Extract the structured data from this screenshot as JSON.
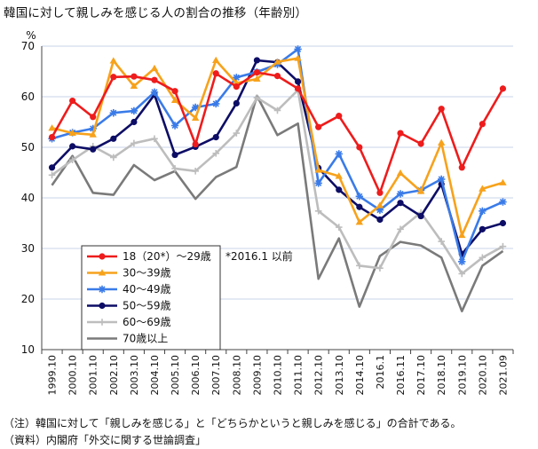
{
  "title": "韓国に対して親しみを感じる人の割合の推移（年齢別）",
  "notes": [
    "（注）韓国に対して「親しみを感じる」と「どちらかというと親しみを感じる」の合計である。",
    "（資料）内閣府「外交に関する世論調査」"
  ],
  "chart_data": {
    "type": "line",
    "unit_label": "%",
    "ylim": [
      10,
      70
    ],
    "yticks": [
      10,
      20,
      30,
      40,
      50,
      60,
      70
    ],
    "grid": "horizontal",
    "legend_position": "bottom-left",
    "annotation": "*2016.1 以前",
    "x_labels": [
      "1999.10",
      "2000.10",
      "2001.10",
      "2002.10",
      "2003.10",
      "2004.10",
      "2005.10",
      "2006.10",
      "2007.10",
      "2008.10",
      "2009.10",
      "2010.10",
      "2011.10",
      "2012.10",
      "2013.10",
      "2014.10",
      "2016.1",
      "2016.11",
      "2017.10",
      "2018.10",
      "2019.10",
      "2020.10",
      "2021.09"
    ],
    "x": [
      "1999.10",
      "2000.10",
      "2001.10",
      "2002.10",
      "2003.10",
      "2004.10",
      "2005.10",
      "2006.10",
      "2007.10",
      "2008.10",
      "2009.10",
      "2010.10",
      "2011.10",
      "2012.10",
      "2013.10",
      "2014.10",
      "2016.1",
      "2016.11",
      "2017.10",
      "2018.10",
      "2019.10",
      "2020.10",
      "2021.09"
    ],
    "series": [
      {
        "name": "18（20*）～29歳",
        "color": "#ee1c1c",
        "marker": "circle",
        "values": [
          52,
          59.2,
          56,
          63.9,
          64,
          63.3,
          61.1,
          50.6,
          64.6,
          62,
          64.8,
          64.1,
          61.6,
          54,
          56.2,
          50,
          41,
          52.8,
          50.7,
          57.6,
          46,
          54.6,
          61.6
        ]
      },
      {
        "name": "30～39歳",
        "color": "#f7a21b",
        "marker": "triangle",
        "values": [
          53.8,
          52.8,
          52.5,
          67.1,
          62.1,
          65.6,
          59.3,
          55.8,
          67.2,
          62.7,
          63.5,
          66.9,
          67.6,
          45.5,
          44.3,
          35.2,
          38.5,
          44.9,
          41.3,
          50.9,
          32.6,
          41.8,
          43
        ]
      },
      {
        "name": "40～49歳",
        "color": "#3a7be8",
        "marker": "star",
        "values": [
          51.7,
          52.9,
          53.7,
          56.8,
          57.2,
          60.9,
          54.3,
          57.9,
          58.6,
          63.8,
          64.9,
          66.4,
          69.4,
          42.9,
          48.7,
          40.3,
          37.6,
          40.8,
          41.5,
          43.7,
          27.4,
          37.4,
          39.2
        ]
      },
      {
        "name": "50～59歳",
        "color": "#0d0d66",
        "marker": "circle",
        "values": [
          46,
          50.2,
          49.6,
          51.7,
          55,
          60.4,
          48.5,
          50.1,
          52,
          58.7,
          67.2,
          66.8,
          63,
          45.9,
          41.6,
          38.2,
          35.7,
          39,
          36.4,
          42.7,
          28.9,
          33.8,
          35
        ]
      },
      {
        "name": "60～69歳",
        "color": "#bdbdbd",
        "marker": "plus",
        "values": [
          44.5,
          47.5,
          50.2,
          48,
          50.8,
          51.7,
          45.8,
          45.3,
          48.8,
          52.8,
          59.8,
          57.3,
          61.3,
          37.4,
          34.2,
          26.6,
          26.1,
          33.8,
          37.1,
          31.4,
          25,
          28.2,
          30.4
        ]
      },
      {
        "name": "70歳以上",
        "color": "#7a7a7a",
        "marker": "line",
        "values": [
          42.5,
          48.3,
          41,
          40.6,
          46.5,
          43.5,
          45.3,
          39.8,
          44.1,
          46.1,
          60.2,
          52.4,
          54.7,
          24,
          32,
          18.5,
          28.5,
          31.3,
          30.6,
          28.2,
          17.6,
          26.6,
          29.5
        ]
      }
    ]
  }
}
